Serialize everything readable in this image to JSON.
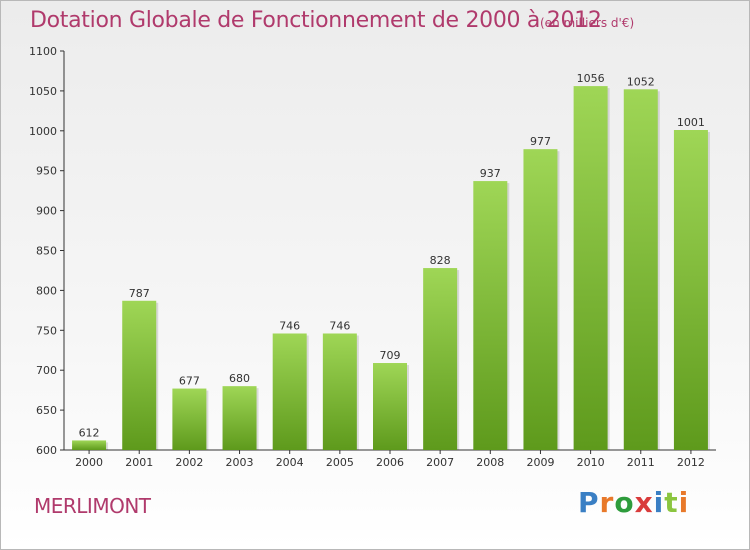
{
  "title": "Dotation Globale de Fonctionnement de 2000 à 2012",
  "subtitle": "(en milliers d'€)",
  "commune": "MERLIMONT",
  "brand": {
    "letters": [
      "P",
      "r",
      "o",
      "x",
      "i",
      "t",
      "i"
    ],
    "colors": [
      "#3a7fc4",
      "#e8792a",
      "#2e9c3c",
      "#d93b3b",
      "#3a7fc4",
      "#8bc53f",
      "#e8792a"
    ]
  },
  "colors": {
    "bar_top": "#9fd656",
    "bar_bottom": "#5e9a1c",
    "title": "#b03a6c"
  },
  "chart_data": {
    "type": "bar",
    "categories": [
      "2000",
      "2001",
      "2002",
      "2003",
      "2004",
      "2005",
      "2006",
      "2007",
      "2008",
      "2009",
      "2010",
      "2011",
      "2012"
    ],
    "values": [
      612,
      787,
      677,
      680,
      746,
      746,
      709,
      828,
      937,
      977,
      1056,
      1052,
      1001
    ],
    "ylim": [
      600,
      1100
    ],
    "yticks": [
      600,
      650,
      700,
      750,
      800,
      850,
      900,
      950,
      1000,
      1050,
      1100
    ],
    "grid": false,
    "legend": "none"
  }
}
